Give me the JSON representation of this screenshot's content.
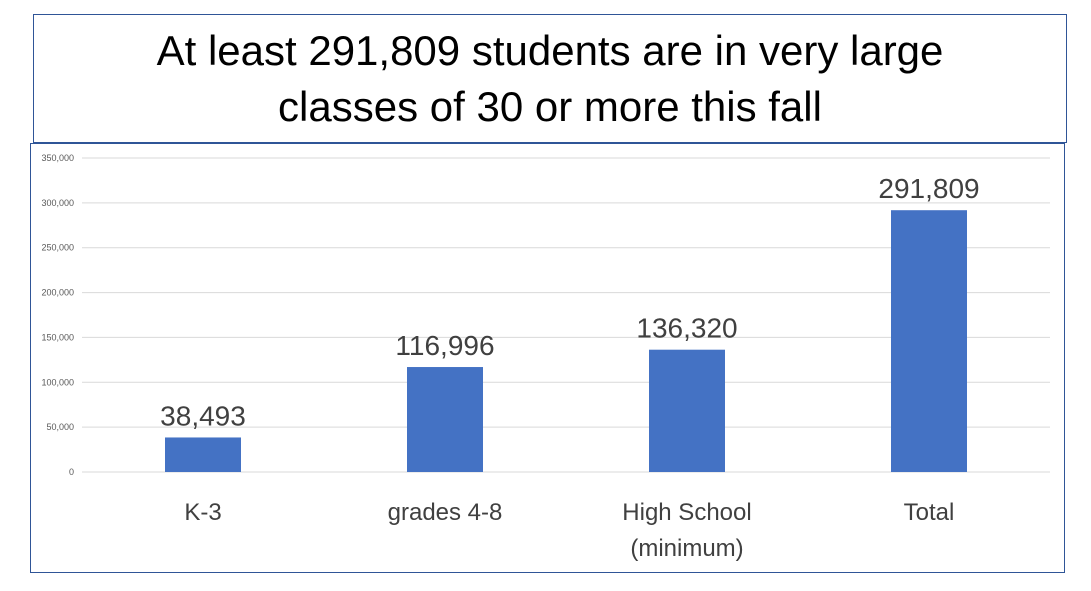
{
  "title": {
    "line1": "At least 291,809 students are in very large",
    "line2": "classes of 30 or more this fall"
  },
  "colors": {
    "bar": "#4472c4",
    "grid": "#d9d9d9",
    "frame": "#2f5597",
    "tick_text": "#595959",
    "label_text": "#404040"
  },
  "chart_data": {
    "type": "bar",
    "categories": [
      [
        "K-3"
      ],
      [
        "grades 4-8"
      ],
      [
        "High School",
        "(minimum)"
      ],
      [
        "Total"
      ]
    ],
    "values": [
      38493,
      116996,
      136320,
      291809
    ],
    "data_labels": [
      "38,493",
      "116,996",
      "136,320",
      "291,809"
    ],
    "ylim": [
      0,
      350000
    ],
    "yticks": [
      0,
      50000,
      100000,
      150000,
      200000,
      250000,
      300000,
      350000
    ],
    "ytick_labels": [
      "0",
      "50,000",
      "100,000",
      "150,000",
      "200,000",
      "250,000",
      "300,000",
      "350,000"
    ],
    "grid": true,
    "legend": "none"
  }
}
